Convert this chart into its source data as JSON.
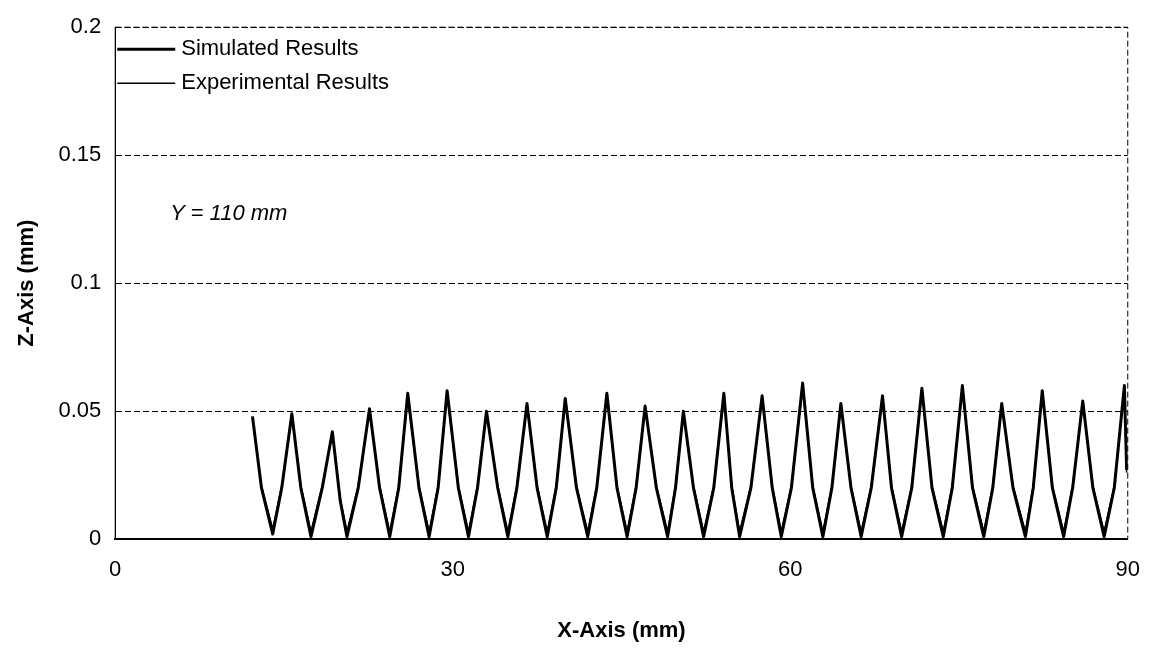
{
  "chart_data": {
    "type": "line",
    "xlabel": "X-Axis (mm)",
    "ylabel": "Z-Axis (mm)",
    "annotations": [
      "Y = 110 mm"
    ],
    "xlim": [
      0,
      90
    ],
    "xticks": [
      0,
      30,
      60,
      90
    ],
    "ylim": [
      0,
      0.2
    ],
    "yticks": [
      0,
      0.05,
      0.1,
      0.15,
      0.2
    ],
    "grid": "y",
    "legend": "top left",
    "marker": "none",
    "x": [
      12.2,
      13.0,
      14.0,
      14.8,
      15.7,
      16.5,
      17.4,
      18.4,
      19.3,
      20.0,
      20.6,
      21.6,
      22.6,
      23.5,
      24.4,
      25.2,
      26.0,
      27.0,
      27.9,
      28.7,
      29.5,
      30.5,
      31.4,
      32.2,
      33.0,
      34.0,
      34.9,
      35.7,
      36.6,
      37.5,
      38.4,
      39.2,
      40.0,
      41.0,
      42.0,
      42.8,
      43.7,
      44.6,
      45.5,
      46.3,
      47.1,
      48.1,
      49.1,
      49.8,
      50.5,
      51.4,
      52.3,
      53.2,
      54.1,
      54.8,
      55.5,
      56.5,
      57.5,
      58.4,
      59.2,
      60.1,
      61.1,
      62.0,
      62.9,
      63.7,
      64.5,
      65.4,
      66.3,
      67.2,
      68.2,
      69.0,
      69.9,
      70.8,
      71.7,
      72.6,
      73.6,
      74.4,
      75.3,
      76.2,
      77.2,
      78.0,
      78.8,
      79.8,
      80.9,
      81.6,
      82.4,
      83.3,
      84.3,
      85.1,
      86.0,
      86.9,
      87.9,
      88.8,
      89.7,
      89.9
    ],
    "series": [
      {
        "name": "Simulated Results",
        "color": "#000000",
        "values": [
          0.048,
          0.02,
          0.002,
          0.02,
          0.049,
          0.02,
          0.001,
          0.02,
          0.042,
          0.015,
          0.001,
          0.02,
          0.051,
          0.02,
          0.001,
          0.02,
          0.057,
          0.02,
          0.001,
          0.02,
          0.058,
          0.02,
          0.001,
          0.02,
          0.05,
          0.02,
          0.001,
          0.02,
          0.053,
          0.02,
          0.001,
          0.02,
          0.055,
          0.02,
          0.001,
          0.02,
          0.057,
          0.02,
          0.001,
          0.02,
          0.052,
          0.02,
          0.001,
          0.02,
          0.05,
          0.02,
          0.001,
          0.02,
          0.057,
          0.02,
          0.001,
          0.02,
          0.056,
          0.02,
          0.001,
          0.02,
          0.061,
          0.02,
          0.001,
          0.02,
          0.053,
          0.02,
          0.001,
          0.02,
          0.056,
          0.02,
          0.001,
          0.02,
          0.059,
          0.02,
          0.001,
          0.02,
          0.06,
          0.02,
          0.001,
          0.02,
          0.053,
          0.02,
          0.001,
          0.02,
          0.058,
          0.02,
          0.001,
          0.02,
          0.054,
          0.02,
          0.001,
          0.02,
          0.06,
          0.027
        ]
      },
      {
        "name": "Experimental Results",
        "color": "#000000",
        "values": [
          0.047,
          0.021,
          0.004,
          0.021,
          0.048,
          0.021,
          0.003,
          0.021,
          0.041,
          0.016,
          0.003,
          0.021,
          0.05,
          0.021,
          0.003,
          0.021,
          0.055,
          0.021,
          0.003,
          0.021,
          0.056,
          0.021,
          0.003,
          0.021,
          0.049,
          0.021,
          0.003,
          0.021,
          0.052,
          0.021,
          0.003,
          0.021,
          0.054,
          0.021,
          0.003,
          0.021,
          0.056,
          0.021,
          0.003,
          0.021,
          0.051,
          0.021,
          0.003,
          0.021,
          0.049,
          0.021,
          0.003,
          0.021,
          0.056,
          0.021,
          0.003,
          0.021,
          0.055,
          0.021,
          0.003,
          0.021,
          0.059,
          0.021,
          0.003,
          0.021,
          0.052,
          0.021,
          0.003,
          0.021,
          0.055,
          0.021,
          0.003,
          0.021,
          0.058,
          0.021,
          0.003,
          0.021,
          0.059,
          0.021,
          0.003,
          0.021,
          0.052,
          0.021,
          0.003,
          0.021,
          0.057,
          0.021,
          0.003,
          0.021,
          0.053,
          0.021,
          0.003,
          0.021,
          0.059,
          0.026
        ]
      }
    ]
  }
}
